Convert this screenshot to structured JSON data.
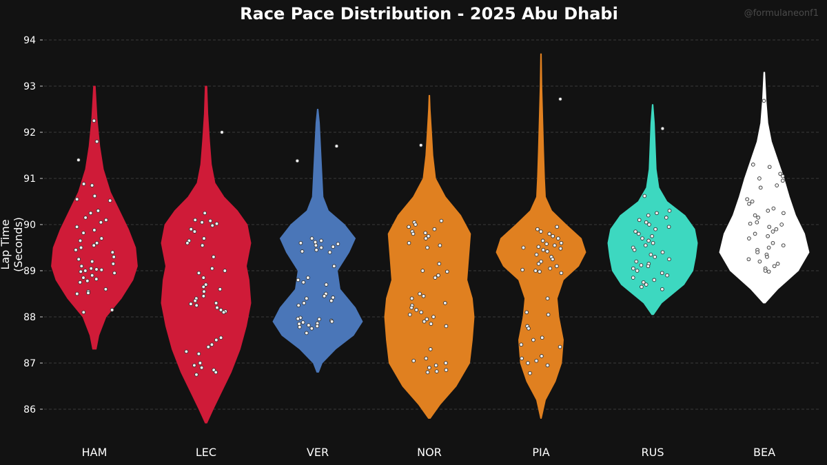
{
  "watermark": "@formulaneonf1",
  "chart_data": {
    "type": "violin",
    "title": "Race Pace Distribution - 2025 Abu Dhabi",
    "xlabel": "",
    "ylabel": "Lap Time (Seconds)",
    "ylim": [
      85.5,
      94.2
    ],
    "yticks": [
      86,
      87,
      88,
      89,
      90,
      91,
      92,
      93,
      94
    ],
    "grid": true,
    "series": [
      {
        "name": "HAM",
        "color": "#cf1b38",
        "profile": [
          [
            87.3,
            0.02
          ],
          [
            87.6,
            0.05
          ],
          [
            88.0,
            0.13
          ],
          [
            88.4,
            0.3
          ],
          [
            88.8,
            0.43
          ],
          [
            89.1,
            0.48
          ],
          [
            89.5,
            0.46
          ],
          [
            89.9,
            0.38
          ],
          [
            90.3,
            0.28
          ],
          [
            90.7,
            0.18
          ],
          [
            91.2,
            0.1
          ],
          [
            91.7,
            0.06
          ],
          [
            92.3,
            0.03
          ],
          [
            93.0,
            0.01
          ]
        ],
        "points": [
          92.25,
          91.8,
          91.4,
          90.88,
          90.85,
          90.62,
          90.55,
          90.52,
          90.3,
          90.25,
          90.15,
          90.1,
          90.05,
          89.95,
          89.88,
          89.82,
          89.7,
          89.65,
          89.6,
          89.55,
          89.5,
          89.45,
          89.4,
          89.3,
          89.25,
          89.2,
          89.15,
          89.1,
          89.05,
          89.03,
          89.02,
          89.0,
          88.98,
          88.95,
          88.9,
          88.85,
          88.82,
          88.78,
          88.75,
          88.6,
          88.55,
          88.52,
          88.5,
          88.15,
          88.1
        ]
      },
      {
        "name": "LEC",
        "color": "#cf1b38",
        "profile": [
          [
            85.7,
            0.01
          ],
          [
            86.0,
            0.08
          ],
          [
            86.4,
            0.18
          ],
          [
            86.8,
            0.28
          ],
          [
            87.3,
            0.38
          ],
          [
            87.8,
            0.45
          ],
          [
            88.3,
            0.5
          ],
          [
            88.8,
            0.48
          ],
          [
            89.1,
            0.45
          ],
          [
            89.6,
            0.5
          ],
          [
            90.0,
            0.46
          ],
          [
            90.3,
            0.35
          ],
          [
            90.6,
            0.2
          ],
          [
            90.9,
            0.1
          ],
          [
            91.3,
            0.06
          ],
          [
            91.8,
            0.04
          ],
          [
            92.4,
            0.02
          ],
          [
            93.0,
            0.01
          ]
        ],
        "points": [
          92.0,
          90.25,
          90.1,
          90.08,
          90.05,
          90.02,
          89.98,
          89.9,
          89.85,
          89.7,
          89.65,
          89.6,
          89.55,
          89.3,
          89.05,
          89.0,
          88.95,
          88.85,
          88.7,
          88.65,
          88.6,
          88.55,
          88.45,
          88.4,
          88.35,
          88.3,
          88.28,
          88.25,
          88.2,
          88.15,
          88.12,
          88.1,
          87.55,
          87.5,
          87.4,
          87.35,
          87.25,
          87.2,
          87.0,
          86.95,
          86.9,
          86.85,
          86.8,
          86.75
        ]
      },
      {
        "name": "VER",
        "color": "#4a76b8",
        "profile": [
          [
            86.8,
            0.01
          ],
          [
            87.0,
            0.05
          ],
          [
            87.3,
            0.2
          ],
          [
            87.6,
            0.4
          ],
          [
            87.9,
            0.5
          ],
          [
            88.2,
            0.42
          ],
          [
            88.6,
            0.25
          ],
          [
            89.0,
            0.22
          ],
          [
            89.4,
            0.35
          ],
          [
            89.7,
            0.42
          ],
          [
            90.0,
            0.3
          ],
          [
            90.3,
            0.12
          ],
          [
            90.6,
            0.06
          ],
          [
            91.0,
            0.05
          ],
          [
            91.4,
            0.04
          ],
          [
            91.8,
            0.03
          ],
          [
            92.2,
            0.02
          ],
          [
            92.5,
            0.005
          ]
        ],
        "points": [
          91.7,
          91.38,
          89.7,
          89.65,
          89.62,
          89.6,
          89.58,
          89.55,
          89.52,
          89.5,
          89.45,
          89.42,
          89.4,
          89.1,
          88.85,
          88.8,
          88.75,
          88.7,
          88.5,
          88.45,
          88.42,
          88.4,
          88.35,
          88.3,
          88.25,
          87.98,
          87.96,
          87.95,
          87.92,
          87.9,
          87.88,
          87.86,
          87.85,
          87.82,
          87.8,
          87.78,
          87.75,
          87.65
        ]
      },
      {
        "name": "NOR",
        "color": "#e08020",
        "profile": [
          [
            85.8,
            0.01
          ],
          [
            86.1,
            0.12
          ],
          [
            86.5,
            0.3
          ],
          [
            87.0,
            0.45
          ],
          [
            87.5,
            0.48
          ],
          [
            88.0,
            0.5
          ],
          [
            88.4,
            0.48
          ],
          [
            88.8,
            0.42
          ],
          [
            89.3,
            0.44
          ],
          [
            89.8,
            0.46
          ],
          [
            90.2,
            0.35
          ],
          [
            90.6,
            0.18
          ],
          [
            91.0,
            0.07
          ],
          [
            91.5,
            0.04
          ],
          [
            92.0,
            0.025
          ],
          [
            92.5,
            0.01
          ],
          [
            92.8,
            0.005
          ]
        ],
        "points": [
          91.72,
          90.08,
          90.05,
          90.0,
          89.95,
          89.9,
          89.85,
          89.82,
          89.8,
          89.75,
          89.7,
          89.6,
          89.55,
          89.5,
          89.15,
          89.0,
          88.98,
          88.9,
          88.85,
          88.5,
          88.45,
          88.4,
          88.3,
          88.25,
          88.2,
          88.15,
          88.1,
          88.05,
          88.0,
          87.95,
          87.9,
          87.85,
          87.8,
          87.3,
          87.1,
          87.05,
          87.0,
          86.95,
          86.9,
          86.85,
          86.82,
          86.8
        ]
      },
      {
        "name": "PIA",
        "color": "#e08020",
        "profile": [
          [
            85.8,
            0.005
          ],
          [
            86.2,
            0.05
          ],
          [
            86.6,
            0.16
          ],
          [
            87.0,
            0.23
          ],
          [
            87.5,
            0.25
          ],
          [
            88.0,
            0.2
          ],
          [
            88.4,
            0.18
          ],
          [
            88.8,
            0.25
          ],
          [
            89.1,
            0.42
          ],
          [
            89.4,
            0.5
          ],
          [
            89.7,
            0.45
          ],
          [
            90.0,
            0.28
          ],
          [
            90.3,
            0.12
          ],
          [
            90.6,
            0.05
          ],
          [
            91.0,
            0.04
          ],
          [
            91.6,
            0.03
          ],
          [
            92.3,
            0.02
          ],
          [
            93.0,
            0.01
          ],
          [
            93.7,
            0.005
          ]
        ],
        "points": [
          92.72,
          89.95,
          89.9,
          89.85,
          89.8,
          89.75,
          89.7,
          89.65,
          89.6,
          89.58,
          89.55,
          89.52,
          89.5,
          89.48,
          89.45,
          89.42,
          89.35,
          89.3,
          89.25,
          89.2,
          89.15,
          89.1,
          89.05,
          89.02,
          89.0,
          88.98,
          88.95,
          88.4,
          88.1,
          88.05,
          87.8,
          87.75,
          87.55,
          87.5,
          87.4,
          87.35,
          87.15,
          87.1,
          87.05,
          87.0,
          86.95,
          86.78
        ]
      },
      {
        "name": "RUS",
        "color": "#3dd8c0",
        "profile": [
          [
            88.05,
            0.01
          ],
          [
            88.3,
            0.1
          ],
          [
            88.7,
            0.35
          ],
          [
            89.0,
            0.45
          ],
          [
            89.3,
            0.48
          ],
          [
            89.6,
            0.5
          ],
          [
            89.9,
            0.47
          ],
          [
            90.2,
            0.36
          ],
          [
            90.5,
            0.16
          ],
          [
            90.8,
            0.07
          ],
          [
            91.2,
            0.04
          ],
          [
            91.7,
            0.03
          ],
          [
            92.2,
            0.02
          ],
          [
            92.6,
            0.005
          ]
        ],
        "points": [
          92.08,
          90.62,
          90.3,
          90.25,
          90.2,
          90.15,
          90.1,
          90.05,
          90.0,
          89.95,
          89.9,
          89.85,
          89.8,
          89.75,
          89.7,
          89.65,
          89.6,
          89.55,
          89.5,
          89.45,
          89.4,
          89.35,
          89.3,
          89.25,
          89.2,
          89.15,
          89.12,
          89.1,
          89.05,
          89.0,
          88.95,
          88.9,
          88.85,
          88.8,
          88.75,
          88.7,
          88.65,
          88.6
        ]
      },
      {
        "name": "BEA",
        "color": "#ffffff",
        "profile": [
          [
            88.3,
            0.01
          ],
          [
            88.6,
            0.15
          ],
          [
            89.0,
            0.38
          ],
          [
            89.4,
            0.5
          ],
          [
            89.8,
            0.45
          ],
          [
            90.2,
            0.35
          ],
          [
            90.6,
            0.28
          ],
          [
            91.0,
            0.22
          ],
          [
            91.4,
            0.15
          ],
          [
            91.8,
            0.08
          ],
          [
            92.2,
            0.04
          ],
          [
            92.7,
            0.02
          ],
          [
            93.3,
            0.005
          ]
        ],
        "points": [
          92.68,
          91.3,
          91.25,
          91.1,
          91.05,
          91.0,
          90.95,
          90.85,
          90.8,
          90.55,
          90.5,
          90.45,
          90.35,
          90.3,
          90.25,
          90.2,
          90.15,
          90.05,
          90.02,
          90.0,
          89.95,
          89.9,
          89.85,
          89.8,
          89.75,
          89.7,
          89.6,
          89.55,
          89.5,
          89.45,
          89.4,
          89.35,
          89.3,
          89.25,
          89.2,
          89.15,
          89.1,
          89.05,
          89.0,
          88.98
        ]
      }
    ]
  }
}
